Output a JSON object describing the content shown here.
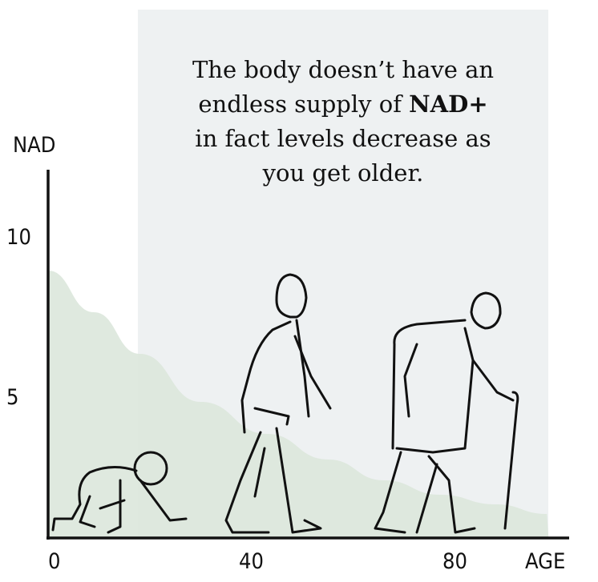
{
  "caption": {
    "line1": "The body doesn’t have an",
    "line2_pre": "endless supply of ",
    "line2_bold": "NAD+",
    "line3": "in fact levels decrease as",
    "line4": "you get older."
  },
  "colors": {
    "panel": "#eef1f2",
    "fill": "#dce7dc",
    "fill_late": "#e3e6e4",
    "axis": "#111111"
  },
  "chart_data": {
    "type": "area",
    "title": "The body doesn’t have an endless supply of NAD+ in fact levels decrease as you get older.",
    "xlabel": "AGE",
    "ylabel": "NAD",
    "xlim": [
      0,
      100
    ],
    "ylim": [
      0,
      11
    ],
    "x_ticks": [
      "0",
      "40",
      "80"
    ],
    "x_tick_values": [
      0,
      40,
      80
    ],
    "y_ticks": [
      "5",
      "10"
    ],
    "y_tick_values": [
      5,
      10
    ],
    "grid": false,
    "x": [
      0,
      9,
      18,
      30,
      43,
      55,
      66,
      77,
      88,
      98
    ],
    "values": [
      9.0,
      7.7,
      6.4,
      4.9,
      3.9,
      3.1,
      2.45,
      2.0,
      1.7,
      1.4
    ],
    "annotations": [
      "baby crawling",
      "adult walking",
      "elderly person with cane"
    ]
  }
}
